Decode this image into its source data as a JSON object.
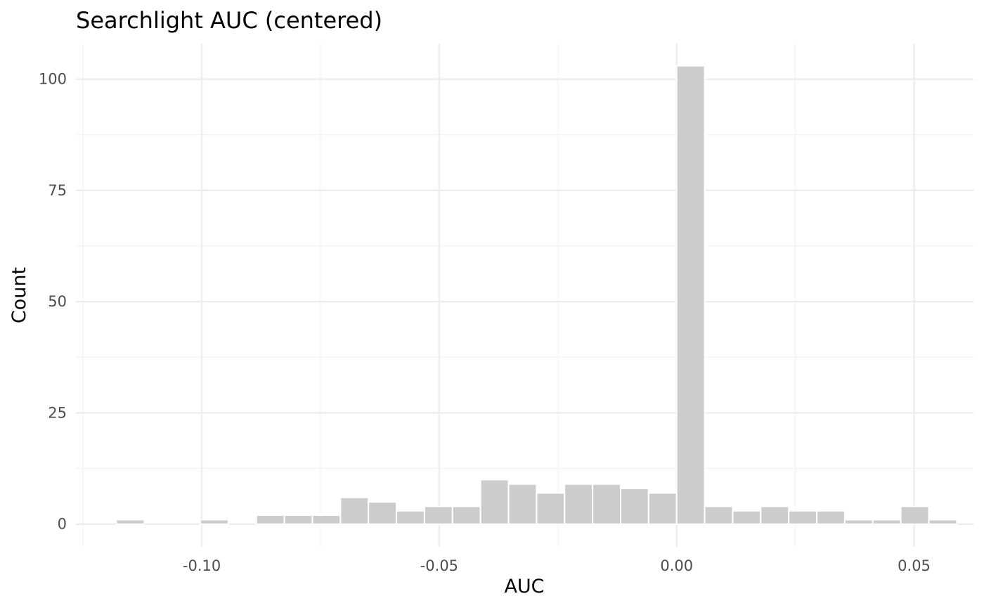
{
  "chart_data": {
    "type": "bar",
    "subtype": "histogram",
    "title": "Searchlight AUC (centered)",
    "xlabel": "AUC",
    "ylabel": "Count",
    "xlim": [
      -0.1265,
      0.0625
    ],
    "ylim": [
      -5.1,
      108
    ],
    "x_ticks": [
      -0.1,
      -0.05,
      0.0,
      0.05
    ],
    "x_tick_labels": [
      "-0.10",
      "-0.05",
      "0.00",
      "0.05"
    ],
    "y_ticks": [
      0,
      25,
      50,
      75,
      100
    ],
    "y_tick_labels": [
      "0",
      "25",
      "50",
      "75",
      "100"
    ],
    "bin_width": 0.0059,
    "bins": [
      {
        "x0": -0.1239,
        "x1": -0.118,
        "count": 0
      },
      {
        "x0": -0.118,
        "x1": -0.1121,
        "count": 1
      },
      {
        "x0": -0.1121,
        "x1": -0.1062,
        "count": 0
      },
      {
        "x0": -0.1062,
        "x1": -0.1003,
        "count": 0
      },
      {
        "x0": -0.1003,
        "x1": -0.0944,
        "count": 1
      },
      {
        "x0": -0.0944,
        "x1": -0.0885,
        "count": 0
      },
      {
        "x0": -0.0885,
        "x1": -0.0826,
        "count": 2
      },
      {
        "x0": -0.0826,
        "x1": -0.0767,
        "count": 2
      },
      {
        "x0": -0.0767,
        "x1": -0.0708,
        "count": 2
      },
      {
        "x0": -0.0708,
        "x1": -0.0649,
        "count": 6
      },
      {
        "x0": -0.0649,
        "x1": -0.059,
        "count": 5
      },
      {
        "x0": -0.059,
        "x1": -0.0531,
        "count": 3
      },
      {
        "x0": -0.0531,
        "x1": -0.0472,
        "count": 4
      },
      {
        "x0": -0.0472,
        "x1": -0.0413,
        "count": 4
      },
      {
        "x0": -0.0413,
        "x1": -0.0354,
        "count": 10
      },
      {
        "x0": -0.0354,
        "x1": -0.0295,
        "count": 9
      },
      {
        "x0": -0.0295,
        "x1": -0.0236,
        "count": 7
      },
      {
        "x0": -0.0236,
        "x1": -0.0177,
        "count": 9
      },
      {
        "x0": -0.0177,
        "x1": -0.0118,
        "count": 9
      },
      {
        "x0": -0.0118,
        "x1": -0.0059,
        "count": 8
      },
      {
        "x0": -0.0059,
        "x1": 0.0,
        "count": 7
      },
      {
        "x0": 0.0,
        "x1": 0.0059,
        "count": 103
      },
      {
        "x0": 0.0059,
        "x1": 0.0118,
        "count": 4
      },
      {
        "x0": 0.0118,
        "x1": 0.0177,
        "count": 3
      },
      {
        "x0": 0.0177,
        "x1": 0.0236,
        "count": 4
      },
      {
        "x0": 0.0236,
        "x1": 0.0295,
        "count": 3
      },
      {
        "x0": 0.0295,
        "x1": 0.0354,
        "count": 3
      },
      {
        "x0": 0.0354,
        "x1": 0.0413,
        "count": 1
      },
      {
        "x0": 0.0413,
        "x1": 0.0472,
        "count": 1
      },
      {
        "x0": 0.0472,
        "x1": 0.0531,
        "count": 4
      },
      {
        "x0": 0.0531,
        "x1": 0.059,
        "count": 1
      },
      {
        "x0": 0.059,
        "x1": 0.0649,
        "count": 0
      }
    ],
    "bar_color": "#cccccc",
    "bar_outline": "#ffffff",
    "grid": true,
    "legend": "none"
  }
}
